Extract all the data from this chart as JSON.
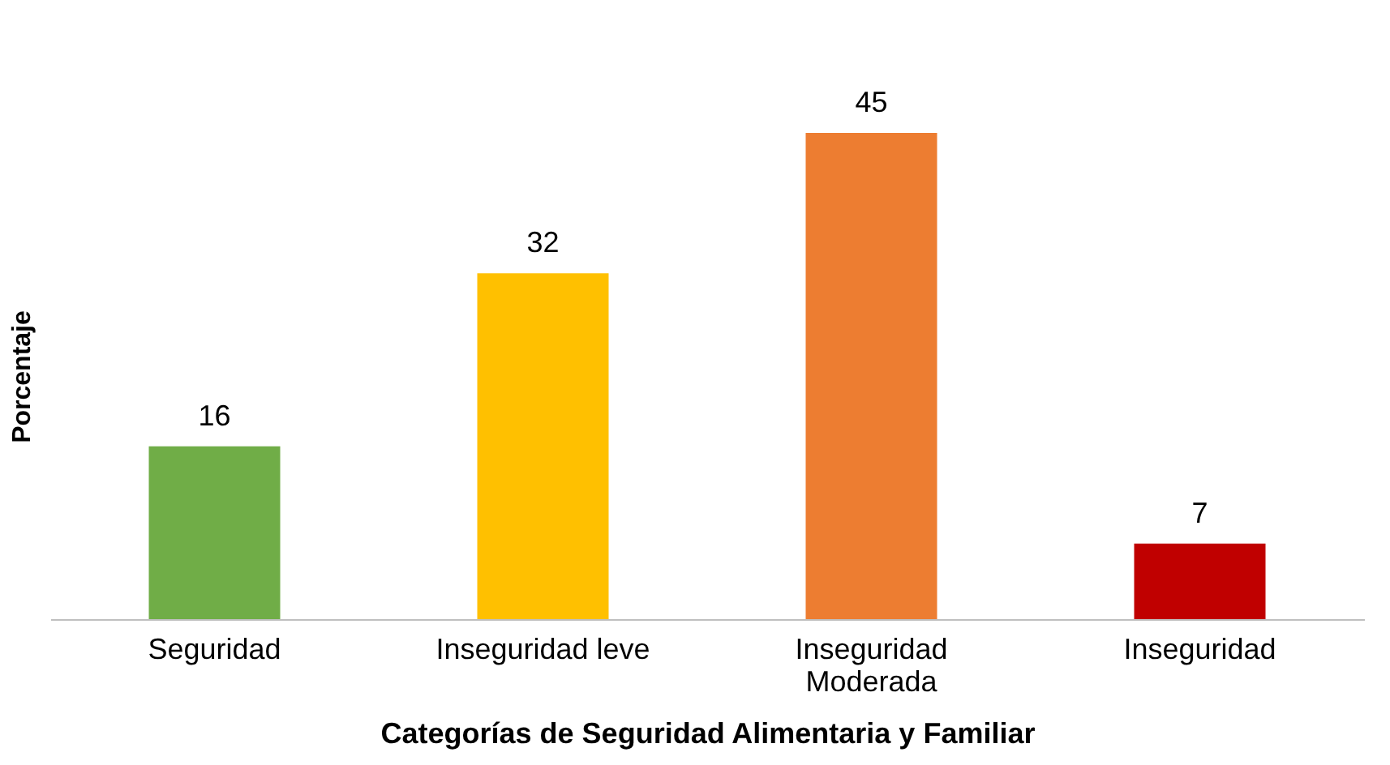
{
  "chart_data": {
    "type": "bar",
    "xlabel": "Categorías de Seguridad Alimentaria y Familiar",
    "ylabel": "Porcentaje",
    "categories": [
      "Seguridad",
      "Inseguridad leve",
      "Inseguridad Moderada",
      "Inseguridad"
    ],
    "values": [
      16,
      32,
      45,
      7
    ],
    "colors": [
      "#70ad47",
      "#ffc000",
      "#ed7d31",
      "#c00000"
    ],
    "data_labels": true
  }
}
